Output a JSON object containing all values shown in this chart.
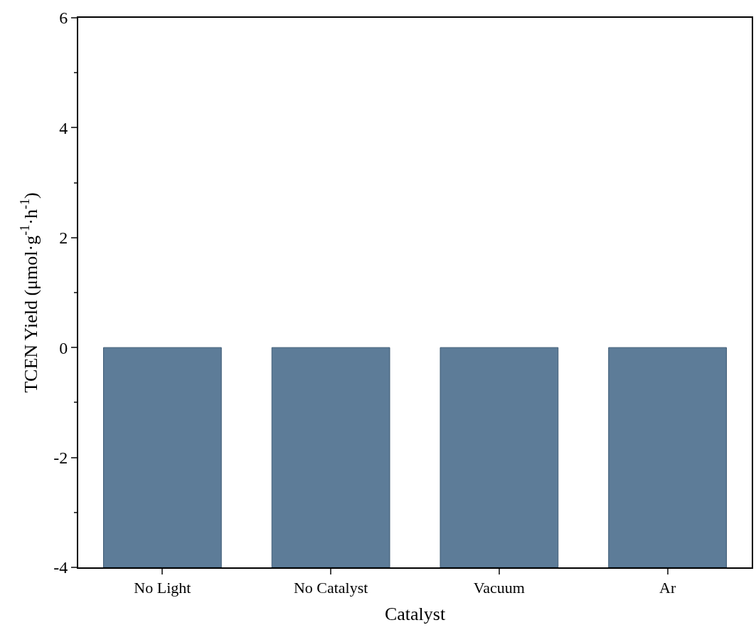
{
  "chart_data": {
    "type": "bar",
    "xlabel": "Catalyst",
    "ylabel": "TCEN Yield (μmol·g$^{-1}$·h$^{-1}$)",
    "categories": [
      "No Light",
      "No Catalyst",
      "Vacuum",
      "Ar"
    ],
    "values": [
      -4,
      -4,
      -4,
      -4
    ],
    "color": "#5d7c98",
    "ylim": [
      -4,
      6
    ],
    "yticks": [
      -4,
      -2,
      0,
      2,
      4,
      6
    ]
  }
}
